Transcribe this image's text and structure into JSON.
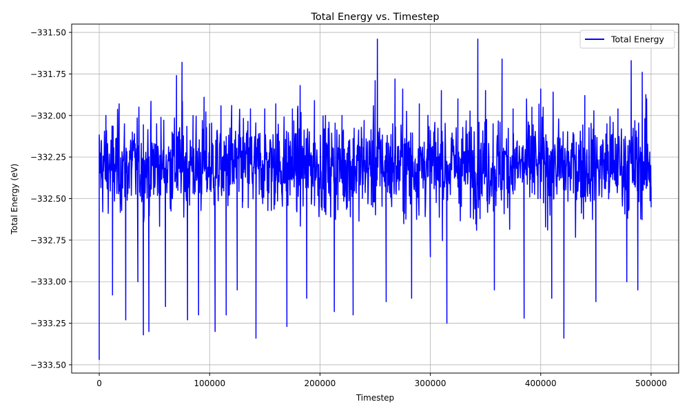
{
  "chart_data": {
    "type": "line",
    "title": "Total Energy vs. Timestep",
    "xlabel": "Timestep",
    "ylabel": "Total Energy (eV)",
    "xlim": [
      -25000,
      525000
    ],
    "ylim": [
      -333.55,
      -331.45
    ],
    "xticks": [
      0,
      100000,
      200000,
      300000,
      400000,
      500000
    ],
    "xtick_labels": [
      "0",
      "100000",
      "200000",
      "300000",
      "400000",
      "500000"
    ],
    "yticks": [
      -333.5,
      -333.25,
      -333.0,
      -332.75,
      -332.5,
      -332.25,
      -332.0,
      -331.75,
      -331.5
    ],
    "ytick_labels": [
      "−333.50",
      "−333.25",
      "−333.00",
      "−332.75",
      "−332.50",
      "−332.25",
      "−332.00",
      "−331.75",
      "−331.50"
    ],
    "grid": true,
    "legend_position": "top-right",
    "series": [
      {
        "name": "Total Energy",
        "color": "#0000ff",
        "x": [
          0,
          2000,
          6000,
          12000,
          18000,
          24000,
          30000,
          35000,
          40000,
          45000,
          52000,
          60000,
          66000,
          70000,
          75000,
          80000,
          85000,
          90000,
          95000,
          100000,
          105000,
          110000,
          115000,
          120000,
          125000,
          130000,
          137000,
          142000,
          150000,
          160000,
          170000,
          175000,
          182000,
          188000,
          195000,
          205000,
          213000,
          220000,
          230000,
          240000,
          250000,
          252000,
          260000,
          268000,
          275000,
          283000,
          290000,
          300000,
          310000,
          315000,
          325000,
          335000,
          343000,
          350000,
          358000,
          365000,
          375000,
          385000,
          392000,
          400000,
          410000,
          421000,
          430000,
          440000,
          450000,
          460000,
          470000,
          478000,
          482000,
          488000,
          492000,
          496000,
          500000
        ],
        "y": [
          -333.47,
          -332.15,
          -332.0,
          -333.08,
          -331.93,
          -333.23,
          -332.1,
          -333.0,
          -333.32,
          -333.3,
          -332.05,
          -333.15,
          -332.1,
          -331.76,
          -331.68,
          -333.23,
          -332.0,
          -333.2,
          -331.89,
          -332.05,
          -333.3,
          -332.13,
          -333.2,
          -331.94,
          -333.05,
          -332.13,
          -331.96,
          -333.34,
          -331.96,
          -331.93,
          -333.27,
          -331.96,
          -331.82,
          -333.1,
          -331.91,
          -332.0,
          -333.18,
          -332.0,
          -333.2,
          -332.03,
          -331.79,
          -331.54,
          -333.12,
          -331.78,
          -331.84,
          -333.1,
          -331.93,
          -332.85,
          -331.85,
          -333.25,
          -331.9,
          -332.1,
          -331.54,
          -331.85,
          -333.05,
          -331.66,
          -331.96,
          -333.22,
          -331.95,
          -331.84,
          -333.1,
          -333.34,
          -332.2,
          -331.88,
          -333.12,
          -332.05,
          -331.96,
          -333.0,
          -331.67,
          -333.05,
          -331.74,
          -331.9,
          -332.55
        ]
      }
    ]
  }
}
